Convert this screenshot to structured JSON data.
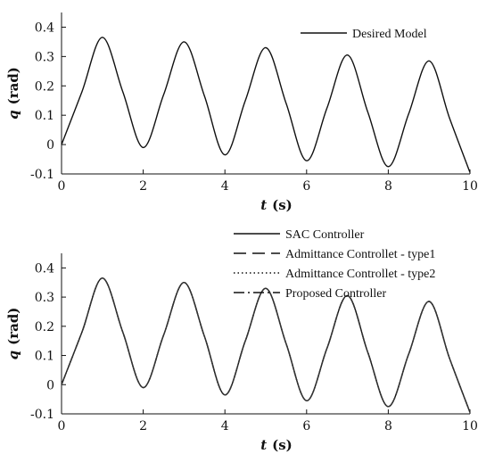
{
  "chart_data": [
    {
      "type": "line",
      "xlabel_var": "t",
      "xlabel_unit": "(s)",
      "ylabel_var": "q",
      "ylabel_unit": "(rad)",
      "xlim": [
        0,
        10
      ],
      "ylim": [
        -0.1,
        0.45
      ],
      "xticks": [
        "0",
        "2",
        "4",
        "6",
        "8",
        "10"
      ],
      "yticks": [
        "-0.1",
        "0",
        "0.1",
        "0.2",
        "0.3",
        "0.4"
      ],
      "legend_position": "top-right",
      "series": [
        {
          "name": "Desired Model",
          "style": "solid",
          "x": [
            0,
            0.5,
            1,
            1.5,
            2,
            2.5,
            3,
            3.5,
            4,
            4.5,
            5,
            5.5,
            6,
            6.5,
            7,
            7.5,
            8,
            8.5,
            9,
            9.5,
            10
          ],
          "y": [
            0,
            0.18,
            0.365,
            0.18,
            -0.01,
            0.17,
            0.35,
            0.165,
            -0.035,
            0.15,
            0.33,
            0.14,
            -0.055,
            0.125,
            0.305,
            0.11,
            -0.075,
            0.105,
            0.285,
            0.09,
            -0.095
          ]
        }
      ]
    },
    {
      "type": "line",
      "xlabel_var": "t",
      "xlabel_unit": "(s)",
      "ylabel_var": "q",
      "ylabel_unit": "(rad)",
      "xlim": [
        0,
        10
      ],
      "ylim": [
        -0.1,
        0.45
      ],
      "xticks": [
        "0",
        "2",
        "4",
        "6",
        "8",
        "10"
      ],
      "yticks": [
        "-0.1",
        "0",
        "0.1",
        "0.2",
        "0.3",
        "0.4"
      ],
      "legend_position": "top-right",
      "series": [
        {
          "name": "SAC Controller",
          "style": "solid",
          "x": [
            0,
            0.5,
            1,
            1.5,
            2,
            2.5,
            3,
            3.5,
            4,
            4.5,
            5,
            5.5,
            6,
            6.5,
            7,
            7.5,
            8,
            8.5,
            9,
            9.5,
            10
          ],
          "y": [
            0,
            0.18,
            0.365,
            0.18,
            -0.01,
            0.17,
            0.35,
            0.165,
            -0.035,
            0.15,
            0.33,
            0.14,
            -0.055,
            0.125,
            0.305,
            0.11,
            -0.075,
            0.105,
            0.285,
            0.09,
            -0.095
          ]
        },
        {
          "name": "Admittance Controllet - type1",
          "style": "dashed",
          "x": [
            0,
            0.5,
            1,
            1.5,
            2,
            2.5,
            3,
            3.5,
            4,
            4.5,
            5,
            5.5,
            6,
            6.5,
            7,
            7.5,
            8,
            8.5,
            9,
            9.5,
            10
          ],
          "y": [
            0,
            0.18,
            0.365,
            0.18,
            -0.01,
            0.17,
            0.35,
            0.165,
            -0.035,
            0.15,
            0.33,
            0.14,
            -0.055,
            0.125,
            0.305,
            0.11,
            -0.075,
            0.105,
            0.285,
            0.09,
            -0.095
          ]
        },
        {
          "name": "Admittance Controllet - type2",
          "style": "dotted",
          "x": [
            0,
            0.5,
            1,
            1.5,
            2,
            2.5,
            3,
            3.5,
            4,
            4.5,
            5,
            5.5,
            6,
            6.5,
            7,
            7.5,
            8,
            8.5,
            9,
            9.5,
            10
          ],
          "y": [
            0,
            0.18,
            0.365,
            0.18,
            -0.01,
            0.17,
            0.35,
            0.165,
            -0.035,
            0.15,
            0.33,
            0.14,
            -0.055,
            0.125,
            0.305,
            0.11,
            -0.075,
            0.105,
            0.285,
            0.09,
            -0.095
          ]
        },
        {
          "name": "Proposed Controller",
          "style": "dashdot",
          "x": [
            0,
            0.5,
            1,
            1.5,
            2,
            2.5,
            3,
            3.5,
            4,
            4.5,
            5,
            5.5,
            6,
            6.5,
            7,
            7.5,
            8,
            8.5,
            9,
            9.5,
            10
          ],
          "y": [
            0,
            0.18,
            0.365,
            0.18,
            -0.01,
            0.17,
            0.35,
            0.165,
            -0.035,
            0.15,
            0.33,
            0.14,
            -0.055,
            0.125,
            0.305,
            0.11,
            -0.075,
            0.105,
            0.285,
            0.09,
            -0.095
          ]
        }
      ]
    }
  ]
}
